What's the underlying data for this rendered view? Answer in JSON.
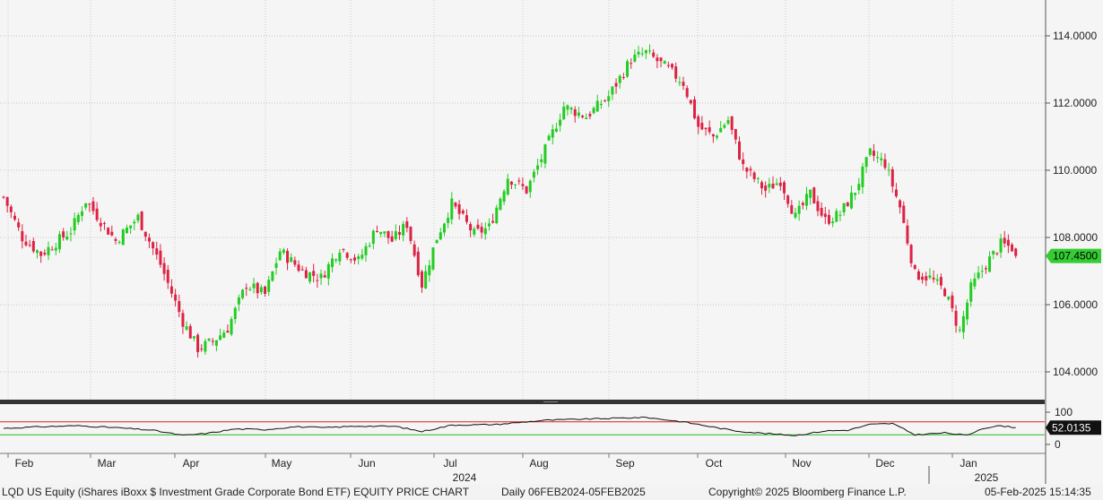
{
  "chart_data": {
    "type": "candlestick",
    "ticker": "LQD US Equity (iShares iBoxx $ Investment Grade Corporate Bond ETF) EQUITY PRICE CHART",
    "period_label": "Daily 06FEB2024-05FEB2025",
    "ylim": [
      103.0,
      115.0
    ],
    "y_ticks": [
      "114.0000",
      "112.0000",
      "110.0000",
      "108.0000",
      "106.0000",
      "104.0000"
    ],
    "y_tick_values": [
      114,
      112,
      110,
      108,
      106,
      104
    ],
    "last_price": "107.4500",
    "last_price_value": 107.45,
    "x_month_labels": [
      "Feb",
      "Mar",
      "Apr",
      "May",
      "Jun",
      "Jul",
      "Aug",
      "Sep",
      "Oct",
      "Nov",
      "Dec",
      "Jan"
    ],
    "year_labels": [
      "2024",
      "2025"
    ],
    "grid": true,
    "colors": {
      "up": "#22cc22",
      "down": "#dd2244",
      "price_label_bg": "#33cc33",
      "rsi_line": "#111111",
      "rsi_upper": "#dd2222",
      "rsi_lower": "#22bb22"
    },
    "close_anchors": [
      [
        0,
        109.2
      ],
      [
        5,
        108.0
      ],
      [
        10,
        107.5
      ],
      [
        18,
        108.2
      ],
      [
        22,
        109.1
      ],
      [
        30,
        107.9
      ],
      [
        36,
        108.6
      ],
      [
        42,
        107.2
      ],
      [
        48,
        105.5
      ],
      [
        52,
        104.7
      ],
      [
        56,
        104.9
      ],
      [
        60,
        105.3
      ],
      [
        65,
        106.6
      ],
      [
        70,
        106.3
      ],
      [
        74,
        107.6
      ],
      [
        80,
        107.0
      ],
      [
        85,
        106.8
      ],
      [
        90,
        107.7
      ],
      [
        95,
        107.3
      ],
      [
        100,
        108.3
      ],
      [
        104,
        107.9
      ],
      [
        108,
        108.4
      ],
      [
        112,
        106.6
      ],
      [
        116,
        108.0
      ],
      [
        120,
        109.0
      ],
      [
        126,
        108.1
      ],
      [
        130,
        108.3
      ],
      [
        135,
        109.8
      ],
      [
        140,
        109.4
      ],
      [
        145,
        110.6
      ],
      [
        150,
        111.9
      ],
      [
        156,
        111.6
      ],
      [
        162,
        112.2
      ],
      [
        168,
        113.3
      ],
      [
        172,
        113.5
      ],
      [
        178,
        113.0
      ],
      [
        182,
        112.6
      ],
      [
        186,
        111.3
      ],
      [
        190,
        111.0
      ],
      [
        194,
        111.5
      ],
      [
        198,
        110.1
      ],
      [
        204,
        109.4
      ],
      [
        208,
        109.7
      ],
      [
        212,
        108.6
      ],
      [
        216,
        109.3
      ],
      [
        220,
        108.5
      ],
      [
        224,
        108.7
      ],
      [
        228,
        109.4
      ],
      [
        232,
        110.5
      ],
      [
        236,
        110.2
      ],
      [
        240,
        108.9
      ],
      [
        244,
        106.9
      ],
      [
        248,
        106.8
      ],
      [
        252,
        106.4
      ],
      [
        256,
        105.2
      ],
      [
        259,
        106.5
      ],
      [
        263,
        107.2
      ],
      [
        267,
        107.8
      ],
      [
        270,
        107.7
      ],
      [
        271,
        107.45
      ]
    ],
    "rsi_current": "52.0135",
    "rsi_scale_labels": [
      "100",
      "0"
    ],
    "rsi_bounds": [
      70,
      30
    ],
    "rsi_anchors": [
      [
        0,
        50
      ],
      [
        10,
        55
      ],
      [
        20,
        58
      ],
      [
        30,
        52
      ],
      [
        40,
        44
      ],
      [
        48,
        28
      ],
      [
        55,
        35
      ],
      [
        62,
        48
      ],
      [
        70,
        46
      ],
      [
        78,
        55
      ],
      [
        86,
        52
      ],
      [
        95,
        57
      ],
      [
        105,
        56
      ],
      [
        112,
        40
      ],
      [
        120,
        60
      ],
      [
        132,
        62
      ],
      [
        145,
        75
      ],
      [
        160,
        80
      ],
      [
        172,
        84
      ],
      [
        182,
        70
      ],
      [
        188,
        58
      ],
      [
        196,
        42
      ],
      [
        204,
        34
      ],
      [
        212,
        28
      ],
      [
        220,
        42
      ],
      [
        226,
        44
      ],
      [
        232,
        62
      ],
      [
        238,
        65
      ],
      [
        244,
        30
      ],
      [
        252,
        36
      ],
      [
        258,
        28
      ],
      [
        262,
        50
      ],
      [
        267,
        58
      ],
      [
        271,
        52
      ]
    ]
  },
  "footer": {
    "title": "LQD US Equity (iShares iBoxx $ Investment Grade Corporate Bond ETF) EQUITY PRICE CHART",
    "period": "Daily 06FEB2024-05FEB2025",
    "copyright": "Copyright© 2025 Bloomberg Finance L.P.",
    "timestamp": "05-Feb-2025 15:14:35"
  }
}
